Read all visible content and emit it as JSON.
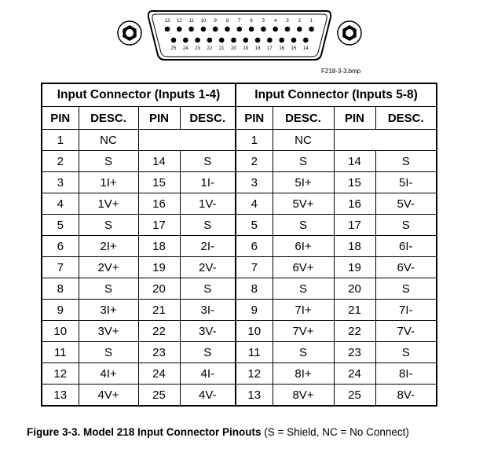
{
  "connector": {
    "top_pins": [
      "13",
      "12",
      "11",
      "10",
      "9",
      "8",
      "7",
      "6",
      "5",
      "4",
      "3",
      "2",
      "1"
    ],
    "bottom_pins": [
      "25",
      "24",
      "23",
      "22",
      "21",
      "20",
      "19",
      "18",
      "17",
      "16",
      "15",
      "14"
    ],
    "file_label": "F218-3-3.bmp"
  },
  "table": {
    "group_headers": [
      "Input Connector (Inputs 1-4)",
      "Input Connector (Inputs 5-8)"
    ],
    "col_headers": [
      "PIN",
      "DESC.",
      "PIN",
      "DESC.",
      "PIN",
      "DESC.",
      "PIN",
      "DESC."
    ],
    "rows": [
      [
        "1",
        "NC",
        "",
        "",
        "1",
        "NC",
        "",
        ""
      ],
      [
        "2",
        "S",
        "14",
        "S",
        "2",
        "S",
        "14",
        "S"
      ],
      [
        "3",
        "1I+",
        "15",
        "1I-",
        "3",
        "5I+",
        "15",
        "5I-"
      ],
      [
        "4",
        "1V+",
        "16",
        "1V-",
        "4",
        "5V+",
        "16",
        "5V-"
      ],
      [
        "5",
        "S",
        "17",
        "S",
        "5",
        "S",
        "17",
        "S"
      ],
      [
        "6",
        "2I+",
        "18",
        "2I-",
        "6",
        "6I+",
        "18",
        "6I-"
      ],
      [
        "7",
        "2V+",
        "19",
        "2V-",
        "7",
        "6V+",
        "19",
        "6V-"
      ],
      [
        "8",
        "S",
        "20",
        "S",
        "8",
        "S",
        "20",
        "S"
      ],
      [
        "9",
        "3I+",
        "21",
        "3I-",
        "9",
        "7I+",
        "21",
        "7I-"
      ],
      [
        "10",
        "3V+",
        "22",
        "3V-",
        "10",
        "7V+",
        "22",
        "7V-"
      ],
      [
        "11",
        "S",
        "23",
        "S",
        "11",
        "S",
        "23",
        "S"
      ],
      [
        "12",
        "4I+",
        "24",
        "4I-",
        "12",
        "8I+",
        "24",
        "8I-"
      ],
      [
        "13",
        "4V+",
        "25",
        "4V-",
        "13",
        "8V+",
        "25",
        "8V-"
      ]
    ]
  },
  "caption": {
    "title": "Figure 3-3. Model 218 Input Connector Pinouts",
    "note": " (S = Shield, NC = No Connect)"
  }
}
